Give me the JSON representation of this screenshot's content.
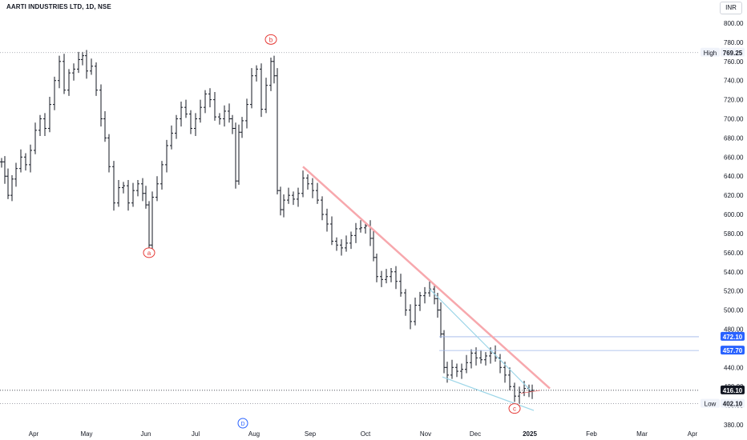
{
  "header": {
    "title": "AARTI INDUSTRIES LTD, 1D, NSE",
    "currency": "INR"
  },
  "chart_data": {
    "type": "ohlc",
    "y_ticks": [
      "800.00",
      "780.00",
      "760.00",
      "740.00",
      "720.00",
      "700.00",
      "680.00",
      "660.00",
      "640.00",
      "620.00",
      "600.00",
      "580.00",
      "560.00",
      "540.00",
      "520.00",
      "500.00",
      "480.00",
      "460.00",
      "440.00",
      "420.00",
      "400.00",
      "380.00"
    ],
    "x_ticks": [
      "Apr",
      "May",
      "Jun",
      "Jul",
      "Aug",
      "Sep",
      "Oct",
      "Nov",
      "Dec",
      "2025",
      "Feb",
      "Mar",
      "Apr"
    ],
    "ylim": [
      380,
      815
    ],
    "high": {
      "label": "High",
      "value": "769.25"
    },
    "low": {
      "label": "Low",
      "value": "402.10"
    },
    "last_price": "416.10",
    "levels": [
      {
        "value": "472.10"
      },
      {
        "value": "457.70"
      }
    ],
    "wave_labels": [
      "a",
      "b",
      "c"
    ],
    "event_marker": "D",
    "colors": {
      "bar": "#131722",
      "pink": "#f7a8ad",
      "cyan": "#9dd6e8",
      "blue": "#2962ff",
      "wave": "#e53935",
      "hline": "#9db4e8"
    },
    "series": [
      {
        "t": 0,
        "close": 655
      },
      {
        "t": 4,
        "close": 640
      },
      {
        "t": 8,
        "close": 620
      },
      {
        "t": 13,
        "close": 637
      },
      {
        "t": 18,
        "close": 648
      },
      {
        "t": 24,
        "close": 660
      },
      {
        "t": 30,
        "close": 652
      },
      {
        "t": 36,
        "close": 667
      },
      {
        "t": 42,
        "close": 688
      },
      {
        "t": 48,
        "close": 700
      },
      {
        "t": 54,
        "close": 690
      },
      {
        "t": 60,
        "close": 715
      },
      {
        "t": 66,
        "close": 740
      },
      {
        "t": 72,
        "close": 760
      },
      {
        "t": 78,
        "close": 730
      },
      {
        "t": 84,
        "close": 748
      },
      {
        "t": 90,
        "close": 752
      },
      {
        "t": 96,
        "close": 762
      },
      {
        "t": 101,
        "close": 766
      },
      {
        "t": 106,
        "close": 750
      },
      {
        "t": 112,
        "close": 755
      },
      {
        "t": 118,
        "close": 730
      },
      {
        "t": 124,
        "close": 700
      },
      {
        "t": 129,
        "close": 680
      },
      {
        "t": 134,
        "close": 650
      },
      {
        "t": 140,
        "close": 612
      },
      {
        "t": 146,
        "close": 628
      },
      {
        "t": 152,
        "close": 630
      },
      {
        "t": 158,
        "close": 612
      },
      {
        "t": 164,
        "close": 625
      },
      {
        "t": 170,
        "close": 632
      },
      {
        "t": 176,
        "close": 622
      },
      {
        "t": 180,
        "close": 610
      },
      {
        "t": 184,
        "close": 568
      },
      {
        "t": 188,
        "close": 618
      },
      {
        "t": 194,
        "close": 632
      },
      {
        "t": 200,
        "close": 652
      },
      {
        "t": 206,
        "close": 672
      },
      {
        "t": 212,
        "close": 685
      },
      {
        "t": 218,
        "close": 700
      },
      {
        "t": 224,
        "close": 712
      },
      {
        "t": 230,
        "close": 705
      },
      {
        "t": 236,
        "close": 690
      },
      {
        "t": 242,
        "close": 700
      },
      {
        "t": 248,
        "close": 712
      },
      {
        "t": 254,
        "close": 726
      },
      {
        "t": 260,
        "close": 720
      },
      {
        "t": 266,
        "close": 702
      },
      {
        "t": 272,
        "close": 700
      },
      {
        "t": 278,
        "close": 708
      },
      {
        "t": 284,
        "close": 700
      },
      {
        "t": 288,
        "close": 690
      },
      {
        "t": 292,
        "close": 635
      },
      {
        "t": 296,
        "close": 686
      },
      {
        "t": 300,
        "close": 698
      },
      {
        "t": 306,
        "close": 715
      },
      {
        "t": 312,
        "close": 745
      },
      {
        "t": 318,
        "close": 752
      },
      {
        "t": 324,
        "close": 710
      },
      {
        "t": 330,
        "close": 735
      },
      {
        "t": 336,
        "close": 760
      },
      {
        "t": 340,
        "close": 745
      },
      {
        "t": 344,
        "close": 625
      },
      {
        "t": 348,
        "close": 605
      },
      {
        "t": 352,
        "close": 615
      },
      {
        "t": 358,
        "close": 620
      },
      {
        "t": 364,
        "close": 616
      },
      {
        "t": 370,
        "close": 622
      },
      {
        "t": 376,
        "close": 638
      },
      {
        "t": 382,
        "close": 632
      },
      {
        "t": 388,
        "close": 625
      },
      {
        "t": 394,
        "close": 615
      },
      {
        "t": 400,
        "close": 600
      },
      {
        "t": 406,
        "close": 590
      },
      {
        "t": 412,
        "close": 572
      },
      {
        "t": 418,
        "close": 568
      },
      {
        "t": 424,
        "close": 565
      },
      {
        "t": 430,
        "close": 570
      },
      {
        "t": 436,
        "close": 578
      },
      {
        "t": 442,
        "close": 585
      },
      {
        "t": 448,
        "close": 586
      },
      {
        "t": 454,
        "close": 588
      },
      {
        "t": 460,
        "close": 575
      },
      {
        "t": 464,
        "close": 555
      },
      {
        "t": 468,
        "close": 535
      },
      {
        "t": 474,
        "close": 532
      },
      {
        "t": 480,
        "close": 535
      },
      {
        "t": 486,
        "close": 540
      },
      {
        "t": 492,
        "close": 530
      },
      {
        "t": 498,
        "close": 518
      },
      {
        "t": 504,
        "close": 500
      },
      {
        "t": 510,
        "close": 488
      },
      {
        "t": 516,
        "close": 505
      },
      {
        "t": 522,
        "close": 515
      },
      {
        "t": 528,
        "close": 518
      },
      {
        "t": 534,
        "close": 522
      },
      {
        "t": 540,
        "close": 512
      },
      {
        "t": 544,
        "close": 500
      },
      {
        "t": 548,
        "close": 475
      },
      {
        "t": 552,
        "close": 440
      },
      {
        "t": 556,
        "close": 432
      },
      {
        "t": 562,
        "close": 440
      },
      {
        "t": 568,
        "close": 436
      },
      {
        "t": 574,
        "close": 438
      },
      {
        "t": 580,
        "close": 445
      },
      {
        "t": 586,
        "close": 455
      },
      {
        "t": 592,
        "close": 450
      },
      {
        "t": 598,
        "close": 448
      },
      {
        "t": 604,
        "close": 452
      },
      {
        "t": 610,
        "close": 455
      },
      {
        "t": 616,
        "close": 450
      },
      {
        "t": 622,
        "close": 440
      },
      {
        "t": 628,
        "close": 432
      },
      {
        "t": 634,
        "close": 420
      },
      {
        "t": 640,
        "close": 410
      },
      {
        "t": 646,
        "close": 414
      },
      {
        "t": 652,
        "close": 418
      },
      {
        "t": 658,
        "close": 415
      },
      {
        "t": 662,
        "close": 416
      }
    ]
  }
}
